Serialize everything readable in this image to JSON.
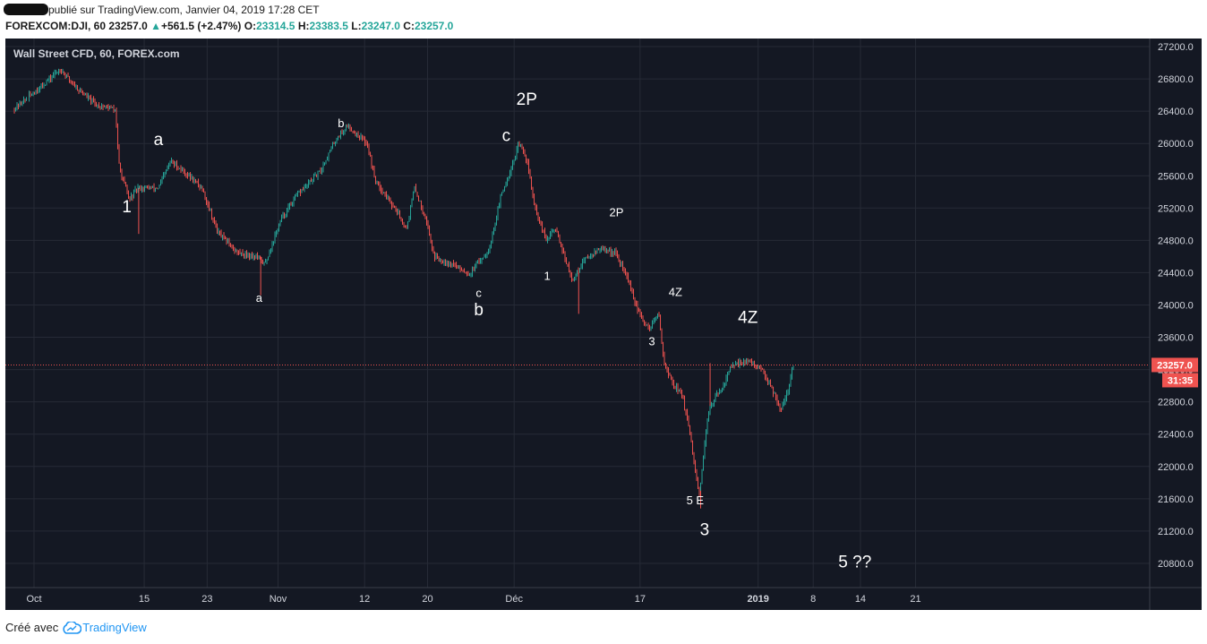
{
  "header": {
    "published_text": "publié sur TradingView.com, Janvier 04, 2019 17:28 CET",
    "symbol": "FOREXCOM:DJI, 60",
    "last": "23257.0",
    "change": "+561.5 (+2.47%)",
    "o_label": "O:",
    "o_value": "23314.5",
    "h_label": "H:",
    "h_value": "23383.5",
    "l_label": "L:",
    "l_value": "23247.0",
    "c_label": "C:",
    "c_value": "23257.0"
  },
  "footer": {
    "created_with": "Créé avec",
    "brand": "TradingView"
  },
  "colors": {
    "background": "#141823",
    "grid": "#262a36",
    "up": "#26a69a",
    "down": "#ef5350",
    "text": "#d1d4dc",
    "price_line": "#ef5350",
    "cloud_icon": "#2196f3"
  },
  "chart_data": {
    "type": "candlestick",
    "title": "Wall Street CFD, 60, FOREX.com",
    "ylim": [
      20500,
      27300
    ],
    "y_ticks": [
      "27200.0",
      "26800.0",
      "26400.0",
      "26000.0",
      "25600.0",
      "25200.0",
      "24800.0",
      "24400.0",
      "24000.0",
      "23600.0",
      "23200.0",
      "22800.0",
      "22400.0",
      "22000.0",
      "21600.0",
      "21200.0",
      "20800.0"
    ],
    "x_ticks": [
      {
        "label": "Oct",
        "day": 0
      },
      {
        "label": "15",
        "day": 14
      },
      {
        "label": "23",
        "day": 22
      },
      {
        "label": "Nov",
        "day": 31
      },
      {
        "label": "12",
        "day": 42
      },
      {
        "label": "20",
        "day": 50
      },
      {
        "label": "Déc",
        "day": 61
      },
      {
        "label": "17",
        "day": 77
      },
      {
        "label": "2019",
        "day": 92
      },
      {
        "label": "8",
        "day": 99
      },
      {
        "label": "14",
        "day": 105
      },
      {
        "label": "21",
        "day": 112
      }
    ],
    "price_path": [
      {
        "day": -2.5,
        "price": 26420
      },
      {
        "day": 1.0,
        "price": 26700
      },
      {
        "day": 3.5,
        "price": 26920
      },
      {
        "day": 5.5,
        "price": 26700
      },
      {
        "day": 8.0,
        "price": 26480
      },
      {
        "day": 10.5,
        "price": 26420
      },
      {
        "day": 11.0,
        "price": 25700
      },
      {
        "day": 12.3,
        "price": 25300
      },
      {
        "day": 13.3,
        "price": 25450
      },
      {
        "day": 16.0,
        "price": 25450
      },
      {
        "day": 17.5,
        "price": 25780
      },
      {
        "day": 19.5,
        "price": 25630
      },
      {
        "day": 21.5,
        "price": 25450
      },
      {
        "day": 23.5,
        "price": 24900
      },
      {
        "day": 26.0,
        "price": 24650
      },
      {
        "day": 28.5,
        "price": 24600
      },
      {
        "day": 29.5,
        "price": 24500
      },
      {
        "day": 31.5,
        "price": 25050
      },
      {
        "day": 33.5,
        "price": 25350
      },
      {
        "day": 36.5,
        "price": 25650
      },
      {
        "day": 38.5,
        "price": 26050
      },
      {
        "day": 40.0,
        "price": 26220
      },
      {
        "day": 42.5,
        "price": 26000
      },
      {
        "day": 43.5,
        "price": 25550
      },
      {
        "day": 46.0,
        "price": 25200
      },
      {
        "day": 47.5,
        "price": 24950
      },
      {
        "day": 48.5,
        "price": 25450
      },
      {
        "day": 50.0,
        "price": 25050
      },
      {
        "day": 51.0,
        "price": 24600
      },
      {
        "day": 53.5,
        "price": 24500
      },
      {
        "day": 55.5,
        "price": 24380
      },
      {
        "day": 58.0,
        "price": 24700
      },
      {
        "day": 59.5,
        "price": 25350
      },
      {
        "day": 60.8,
        "price": 25700
      },
      {
        "day": 61.8,
        "price": 26000
      },
      {
        "day": 62.8,
        "price": 25800
      },
      {
        "day": 63.8,
        "price": 25200
      },
      {
        "day": 65.2,
        "price": 24800
      },
      {
        "day": 66.5,
        "price": 24950
      },
      {
        "day": 68.5,
        "price": 24300
      },
      {
        "day": 70.0,
        "price": 24550
      },
      {
        "day": 72.0,
        "price": 24700
      },
      {
        "day": 74.0,
        "price": 24650
      },
      {
        "day": 75.5,
        "price": 24350
      },
      {
        "day": 77.0,
        "price": 23900
      },
      {
        "day": 78.3,
        "price": 23700
      },
      {
        "day": 79.5,
        "price": 23900
      },
      {
        "day": 80.3,
        "price": 23250
      },
      {
        "day": 81.5,
        "price": 23000
      },
      {
        "day": 82.5,
        "price": 22900
      },
      {
        "day": 83.5,
        "price": 22400
      },
      {
        "day": 84.7,
        "price": 21600
      },
      {
        "day": 85.3,
        "price": 22200
      },
      {
        "day": 86.0,
        "price": 22750
      },
      {
        "day": 87.5,
        "price": 22950
      },
      {
        "day": 88.5,
        "price": 23200
      },
      {
        "day": 90.0,
        "price": 23300
      },
      {
        "day": 91.5,
        "price": 23280
      },
      {
        "day": 93.0,
        "price": 23150
      },
      {
        "day": 94.5,
        "price": 22850
      },
      {
        "day": 95.0,
        "price": 22700
      },
      {
        "day": 96.0,
        "price": 22950
      },
      {
        "day": 96.6,
        "price": 23257
      }
    ],
    "last_price": 23257.0,
    "last_price_label": "23257.0",
    "countdown": "31:35",
    "annotations": [
      {
        "text": "1",
        "day": 11.8,
        "price": 25150,
        "size": "big"
      },
      {
        "text": "a",
        "day": 15.8,
        "price": 25980,
        "size": "big"
      },
      {
        "text": "a",
        "day": 28.6,
        "price": 24040,
        "size": "small"
      },
      {
        "text": "b",
        "day": 39.0,
        "price": 26200,
        "size": "small"
      },
      {
        "text": "c",
        "day": 56.5,
        "price": 24100,
        "size": "small"
      },
      {
        "text": "b",
        "day": 56.5,
        "price": 23870,
        "size": "big"
      },
      {
        "text": "2P",
        "day": 62.6,
        "price": 26480,
        "size": "big"
      },
      {
        "text": "c",
        "day": 60.0,
        "price": 26030,
        "size": "big"
      },
      {
        "text": "1",
        "day": 65.2,
        "price": 24310,
        "size": "small"
      },
      {
        "text": "2P",
        "day": 74.0,
        "price": 25100,
        "size": "small"
      },
      {
        "text": "3",
        "day": 78.5,
        "price": 23500,
        "size": "small"
      },
      {
        "text": "4Z",
        "day": 81.5,
        "price": 24110,
        "size": "small"
      },
      {
        "text": "5 E",
        "day": 84.0,
        "price": 21530,
        "size": "small"
      },
      {
        "text": "3",
        "day": 85.2,
        "price": 21150,
        "size": "big"
      },
      {
        "text": "4Z",
        "day": 90.7,
        "price": 23780,
        "size": "big"
      },
      {
        "text": "5  ??",
        "day": 104.3,
        "price": 20750,
        "size": "big"
      }
    ]
  }
}
